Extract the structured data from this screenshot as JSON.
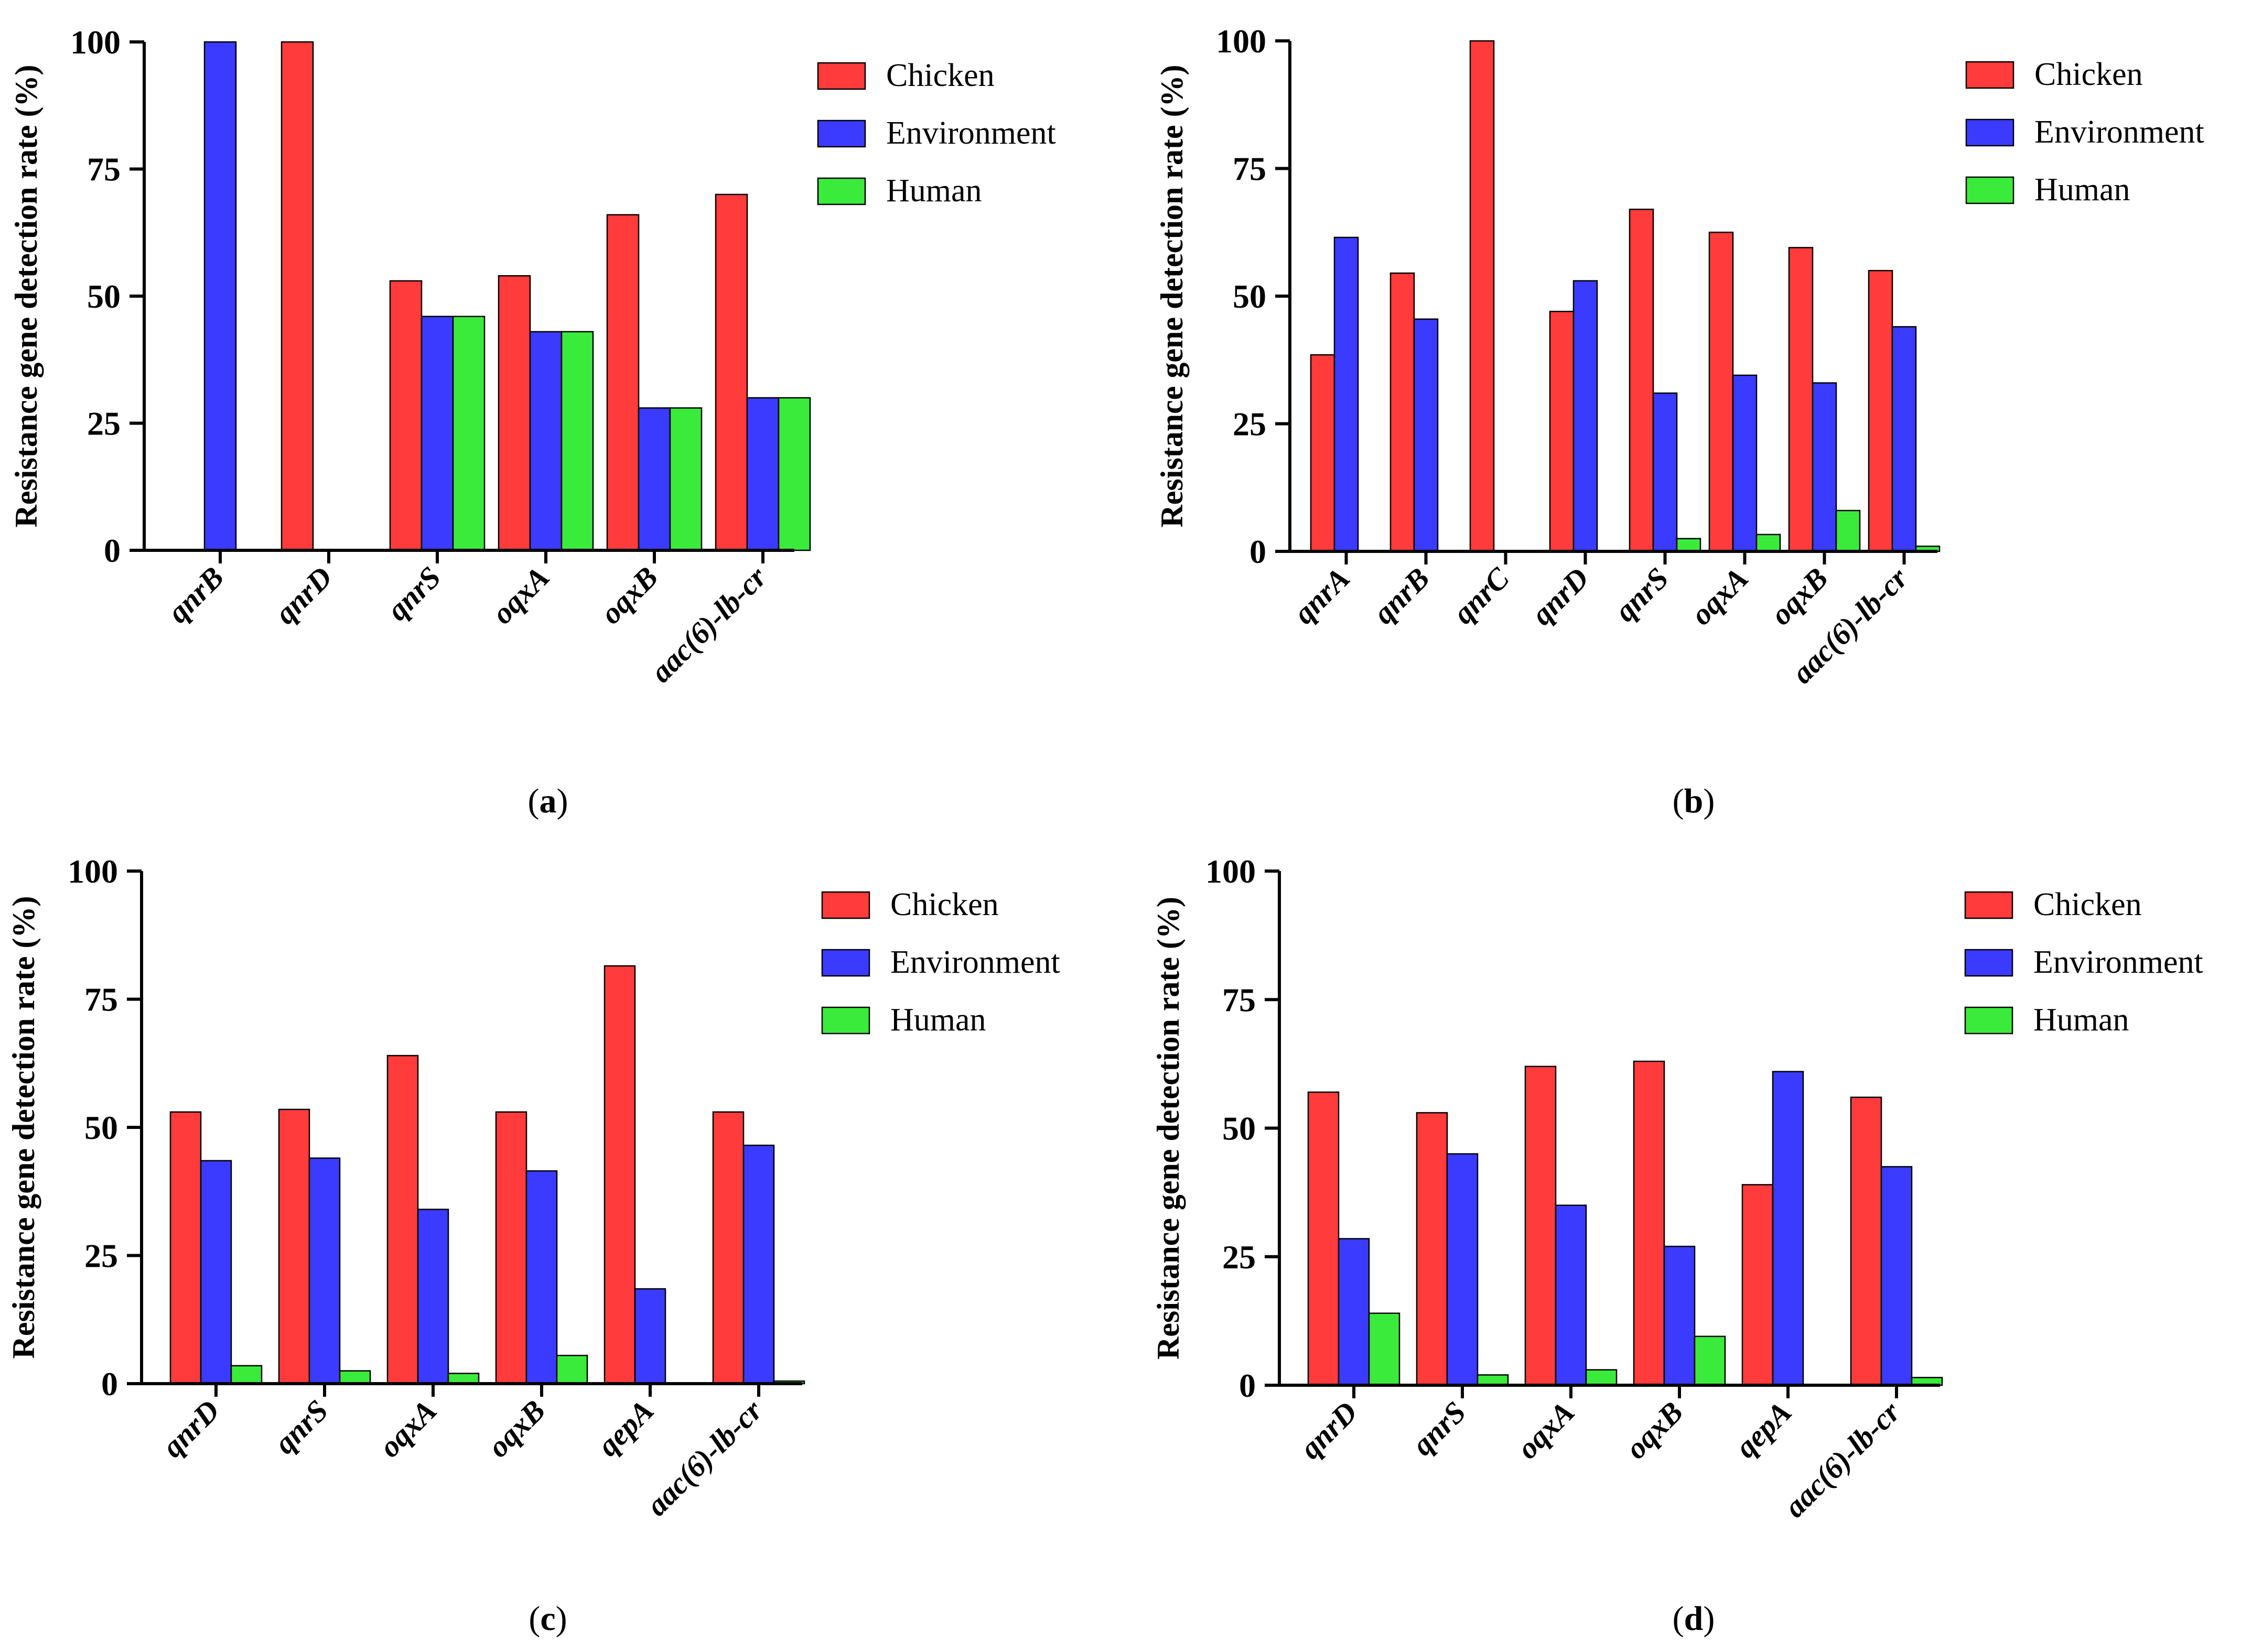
{
  "figure": {
    "panels": [
      {
        "caption": "a"
      },
      {
        "caption": "b"
      },
      {
        "caption": "c"
      },
      {
        "caption": "d"
      }
    ]
  },
  "chart_data": [
    {
      "type": "bar",
      "panel": "a",
      "ylabel": "Resistance gene detection rate (%)",
      "xlabel": "",
      "ylim": [
        0,
        100
      ],
      "yticks": [
        0,
        25,
        50,
        75,
        100
      ],
      "categories": [
        "qnrB",
        "qnrD",
        "qnrS",
        "oqxA",
        "oqxB",
        "aac(6)-lb-cr"
      ],
      "legend_position": "top-right",
      "series": [
        {
          "name": "Chicken",
          "color": "#FF3B3B",
          "values": [
            0,
            100,
            53,
            54,
            66,
            70
          ]
        },
        {
          "name": "Environment",
          "color": "#3B3BFF",
          "values": [
            100,
            0,
            46,
            43,
            28,
            30
          ]
        },
        {
          "name": "Human",
          "color": "#3BEB3B",
          "values": [
            0,
            0,
            46,
            43,
            28,
            30
          ]
        }
      ]
    },
    {
      "type": "bar",
      "panel": "b",
      "ylabel": "Resistance gene detection rate (%)",
      "xlabel": "",
      "ylim": [
        0,
        100
      ],
      "yticks": [
        0,
        25,
        50,
        75,
        100
      ],
      "categories": [
        "qnrA",
        "qnrB",
        "qnrC",
        "qnrD",
        "qnrS",
        "oqxA",
        "oqxB",
        "aac(6)-lb-cr"
      ],
      "legend_position": "top-right",
      "series": [
        {
          "name": "Chicken",
          "color": "#FF3B3B",
          "values": [
            38.5,
            54.5,
            100,
            47,
            67,
            62.5,
            59.5,
            55
          ]
        },
        {
          "name": "Environment",
          "color": "#3B3BFF",
          "values": [
            61.5,
            45.5,
            0,
            53,
            31,
            34.5,
            33,
            44
          ]
        },
        {
          "name": "Human",
          "color": "#3BEB3B",
          "values": [
            0,
            0,
            0,
            0,
            2.5,
            3.3,
            8,
            1
          ]
        }
      ]
    },
    {
      "type": "bar",
      "panel": "c",
      "ylabel": "Resistance gene detection rate (%)",
      "xlabel": "",
      "ylim": [
        0,
        100
      ],
      "yticks": [
        0,
        25,
        50,
        75,
        100
      ],
      "categories": [
        "qnrD",
        "qnrS",
        "oqxA",
        "oqxB",
        "qepA",
        "aac(6)-lb-cr"
      ],
      "legend_position": "top-right",
      "series": [
        {
          "name": "Chicken",
          "color": "#FF3B3B",
          "values": [
            53,
            53.5,
            64,
            53,
            81.5,
            53
          ]
        },
        {
          "name": "Environment",
          "color": "#3B3BFF",
          "values": [
            43.5,
            44,
            34,
            41.5,
            18.5,
            46.5
          ]
        },
        {
          "name": "Human",
          "color": "#3BEB3B",
          "values": [
            3.5,
            2.5,
            2,
            5.5,
            0,
            0.5
          ]
        }
      ]
    },
    {
      "type": "bar",
      "panel": "d",
      "ylabel": "Resistance gene detection rate (%)",
      "xlabel": "",
      "ylim": [
        0,
        100
      ],
      "yticks": [
        0,
        25,
        50,
        75,
        100
      ],
      "categories": [
        "qnrD",
        "qnrS",
        "oqxA",
        "oqxB",
        "qepA",
        "aac(6)-lb-cr"
      ],
      "legend_position": "top-right",
      "series": [
        {
          "name": "Chicken",
          "color": "#FF3B3B",
          "values": [
            57,
            53,
            62,
            63,
            39,
            56
          ]
        },
        {
          "name": "Environment",
          "color": "#3B3BFF",
          "values": [
            28.5,
            45,
            35,
            27,
            61,
            42.5
          ]
        },
        {
          "name": "Human",
          "color": "#3BEB3B",
          "values": [
            14,
            2,
            3,
            9.5,
            0,
            1.5
          ]
        }
      ]
    }
  ]
}
